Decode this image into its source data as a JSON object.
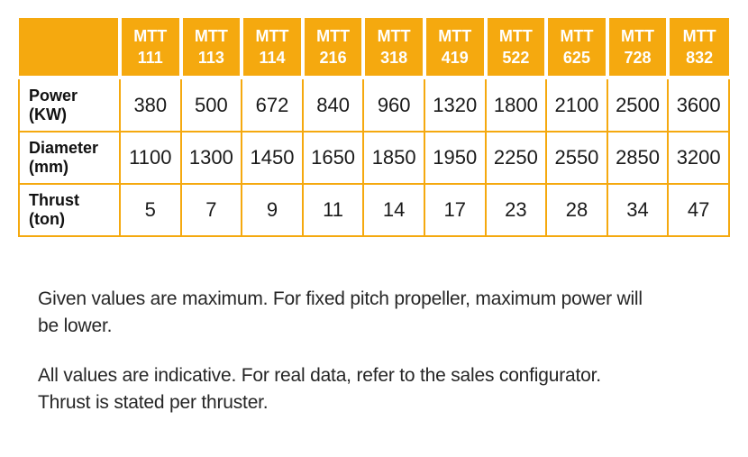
{
  "table": {
    "corner_label": "",
    "column_headers": [
      "MTT\n111",
      "MTT\n113",
      "MTT\n114",
      "MTT\n216",
      "MTT\n318",
      "MTT\n419",
      "MTT\n522",
      "MTT\n625",
      "MTT\n728",
      "MTT\n832"
    ],
    "rows": [
      {
        "label": "Power\n(KW)",
        "values": [
          "380",
          "500",
          "672",
          "840",
          "960",
          "1320",
          "1800",
          "2100",
          "2500",
          "3600"
        ]
      },
      {
        "label": "Diameter\n(mm)",
        "values": [
          "1100",
          "1300",
          "1450",
          "1650",
          "1850",
          "1950",
          "2250",
          "2550",
          "2850",
          "3200"
        ]
      },
      {
        "label": "Thrust\n(ton)",
        "values": [
          "5",
          "7",
          "9",
          "11",
          "14",
          "17",
          "23",
          "28",
          "34",
          "47"
        ]
      }
    ]
  },
  "notes": {
    "note1": "Given values are maximum. For fixed pitch propeller, maximum power will\nbe lower.",
    "note2": "All values are indicative. For real data, refer to the sales configurator.\nThrust is stated per thruster."
  },
  "colors": {
    "header_background": "#F5A90F",
    "header_text": "#FFFFFF",
    "table_border": "#F5A90F",
    "body_text": "#1A1A1A",
    "note_text": "#262626",
    "page_background": "#FFFFFF"
  }
}
